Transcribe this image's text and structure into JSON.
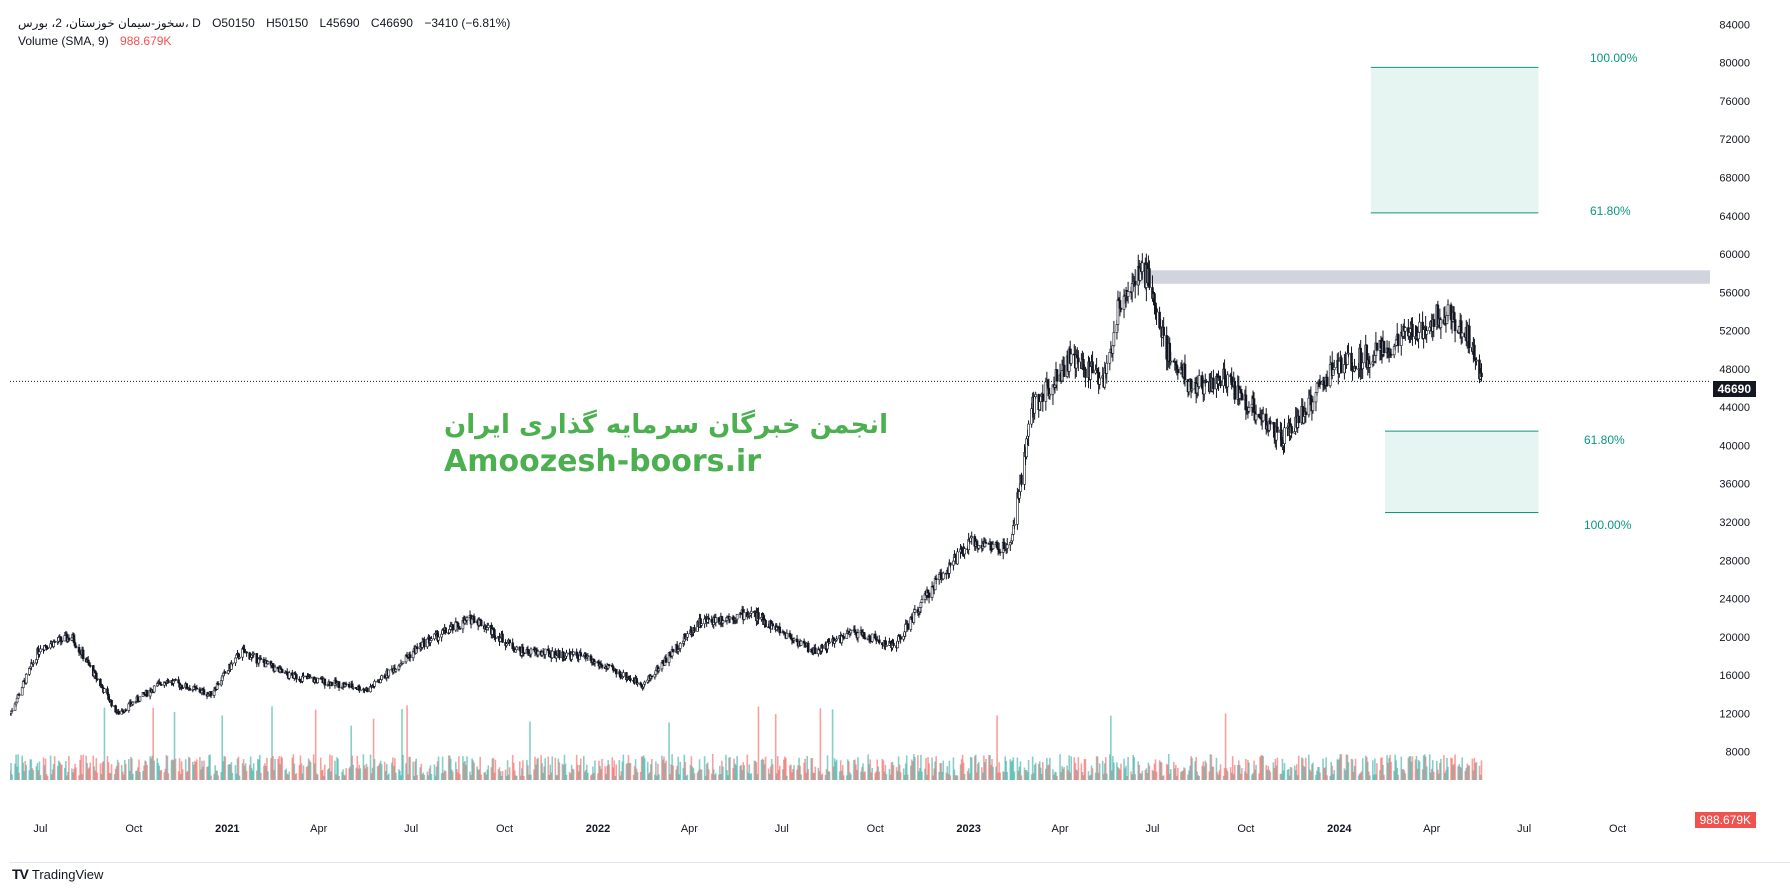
{
  "legend": {
    "symbol": "سخوز-سیمان خوزستان، 2، بورس، D",
    "open": "O50150",
    "high": "H50150",
    "low": "L45690",
    "close": "C46690",
    "change": "−3410 (−6.81%)",
    "volume_label": "Volume (SMA, 9)",
    "volume_value": "988.679K"
  },
  "watermark": {
    "persian": "انجمن خبرگان سرمایه گذاری ایران",
    "latin": "Amoozesh-boors.ir"
  },
  "last_price": "46690",
  "volume_tag": "988.679K",
  "footer": {
    "logo": "𝟏𝟕",
    "brand": "TradingView"
  },
  "colors": {
    "candle": "#131722",
    "volume_up": "#26a69a",
    "volume_down": "#ef5350",
    "fib": "#089981",
    "fib_fill": "#e6f5f1",
    "resistance_zone": "#d1d4dc",
    "watermark": "#4caf50"
  },
  "chart_data": {
    "type": "candlestick",
    "y_axis": {
      "ticks": [
        84000,
        80000,
        76000,
        72000,
        68000,
        64000,
        60000,
        56000,
        52000,
        48000,
        44000,
        40000,
        36000,
        32000,
        28000,
        24000,
        20000,
        16000,
        12000,
        8000
      ],
      "range": [
        4000,
        85500
      ]
    },
    "x_axis": {
      "ticks": [
        "Jul",
        "Oct",
        "2021",
        "Apr",
        "Jul",
        "Oct",
        "2022",
        "Apr",
        "Jul",
        "Oct",
        "2023",
        "Apr",
        "Jul",
        "Oct",
        "2024",
        "Apr",
        "Jul",
        "Oct"
      ],
      "range": [
        "2020-06-01",
        "2024-12-31"
      ]
    },
    "price_path": [
      {
        "date": "2020-06-01",
        "price": 12000
      },
      {
        "date": "2020-07-01",
        "price": 19000
      },
      {
        "date": "2020-08-01",
        "price": 20000
      },
      {
        "date": "2020-09-15",
        "price": 12000
      },
      {
        "date": "2020-11-01",
        "price": 15500
      },
      {
        "date": "2020-12-15",
        "price": 14000
      },
      {
        "date": "2021-01-15",
        "price": 18500
      },
      {
        "date": "2021-03-01",
        "price": 16000
      },
      {
        "date": "2021-05-20",
        "price": 14500
      },
      {
        "date": "2021-07-15",
        "price": 19500
      },
      {
        "date": "2021-09-01",
        "price": 22000
      },
      {
        "date": "2021-10-15",
        "price": 18500
      },
      {
        "date": "2021-12-15",
        "price": 18000
      },
      {
        "date": "2022-02-15",
        "price": 15000
      },
      {
        "date": "2022-04-10",
        "price": 21500
      },
      {
        "date": "2022-06-01",
        "price": 22500
      },
      {
        "date": "2022-08-01",
        "price": 18500
      },
      {
        "date": "2022-09-10",
        "price": 20500
      },
      {
        "date": "2022-10-20",
        "price": 19000
      },
      {
        "date": "2022-12-01",
        "price": 26000
      },
      {
        "date": "2023-01-05",
        "price": 30000
      },
      {
        "date": "2023-02-10",
        "price": 29000
      },
      {
        "date": "2023-03-05",
        "price": 44000
      },
      {
        "date": "2023-04-10",
        "price": 49000
      },
      {
        "date": "2023-05-15",
        "price": 47000
      },
      {
        "date": "2023-06-01",
        "price": 56000
      },
      {
        "date": "2023-06-25",
        "price": 58000
      },
      {
        "date": "2023-07-15",
        "price": 50000
      },
      {
        "date": "2023-08-10",
        "price": 46000
      },
      {
        "date": "2023-09-10",
        "price": 47000
      },
      {
        "date": "2023-10-15",
        "price": 43000
      },
      {
        "date": "2023-11-05",
        "price": 40500
      },
      {
        "date": "2023-12-01",
        "price": 44000
      },
      {
        "date": "2023-12-25",
        "price": 48000
      },
      {
        "date": "2024-02-15",
        "price": 50000
      },
      {
        "date": "2024-03-25",
        "price": 52500
      },
      {
        "date": "2024-04-15",
        "price": 54000
      },
      {
        "date": "2024-05-10",
        "price": 51000
      },
      {
        "date": "2024-05-20",
        "price": 46690
      }
    ],
    "last_close": 46690,
    "fib_upper": {
      "level_100": "100.00%",
      "level_618": "61.80%",
      "price_100": 79500,
      "price_618": 64300
    },
    "fib_lower": {
      "level_618": "61.80%",
      "level_100": "100.00%",
      "price_618": 41500,
      "price_100": 33000
    },
    "resistance_zone": {
      "from": 56900,
      "to": 58300,
      "start": "2023-06-15"
    }
  }
}
